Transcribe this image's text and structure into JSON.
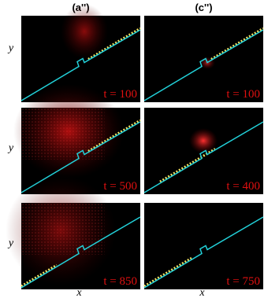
{
  "columns": [
    {
      "header": "(a'')",
      "panels": [
        "t = 100",
        "t = 500",
        "t = 850"
      ]
    },
    {
      "header": "(c'')",
      "panels": [
        "t = 100",
        "t = 400",
        "t = 750"
      ]
    }
  ],
  "axis_labels": {
    "y": [
      "y",
      "y",
      "y"
    ],
    "x": [
      "x",
      "x"
    ]
  }
}
